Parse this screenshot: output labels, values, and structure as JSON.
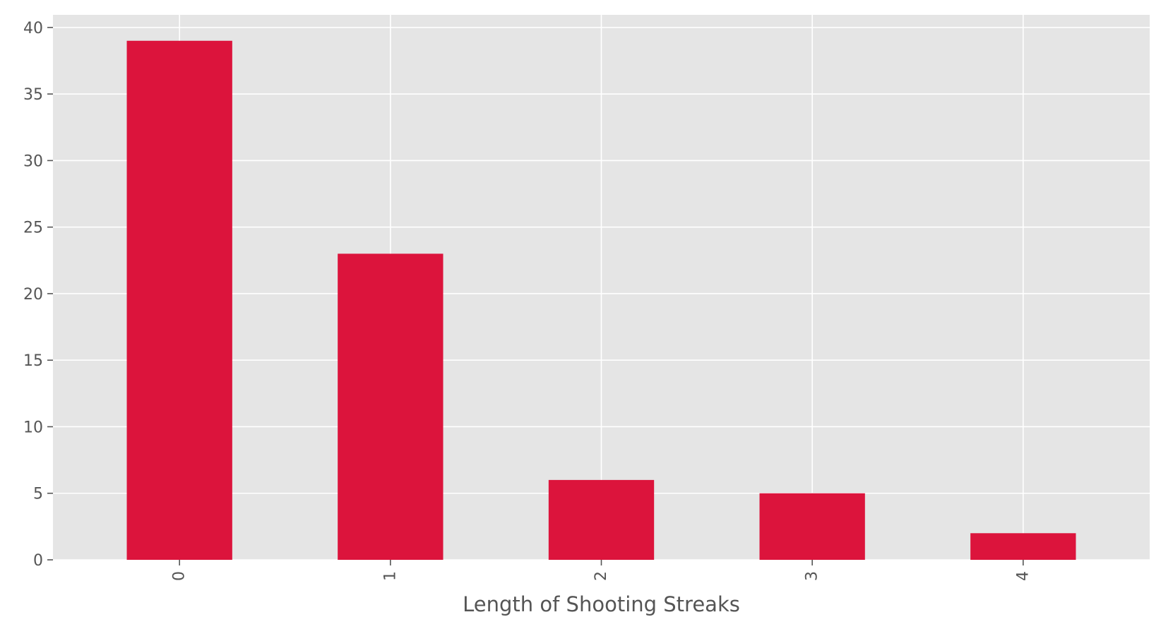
{
  "chart_data": {
    "type": "bar",
    "categories": [
      "0",
      "1",
      "2",
      "3",
      "4"
    ],
    "values": [
      39,
      23,
      6,
      5,
      2
    ],
    "title": "",
    "xlabel": "Length of Shooting Streaks",
    "ylabel": "",
    "ylim": [
      0,
      40.95
    ],
    "yticks": [
      0,
      5,
      10,
      15,
      20,
      25,
      30,
      35,
      40
    ],
    "x_tick_rotation": "vertical",
    "grid": true,
    "bar_color": "#dc143c",
    "background_color": "#e5e5e5",
    "grid_color": "#ffffff"
  }
}
